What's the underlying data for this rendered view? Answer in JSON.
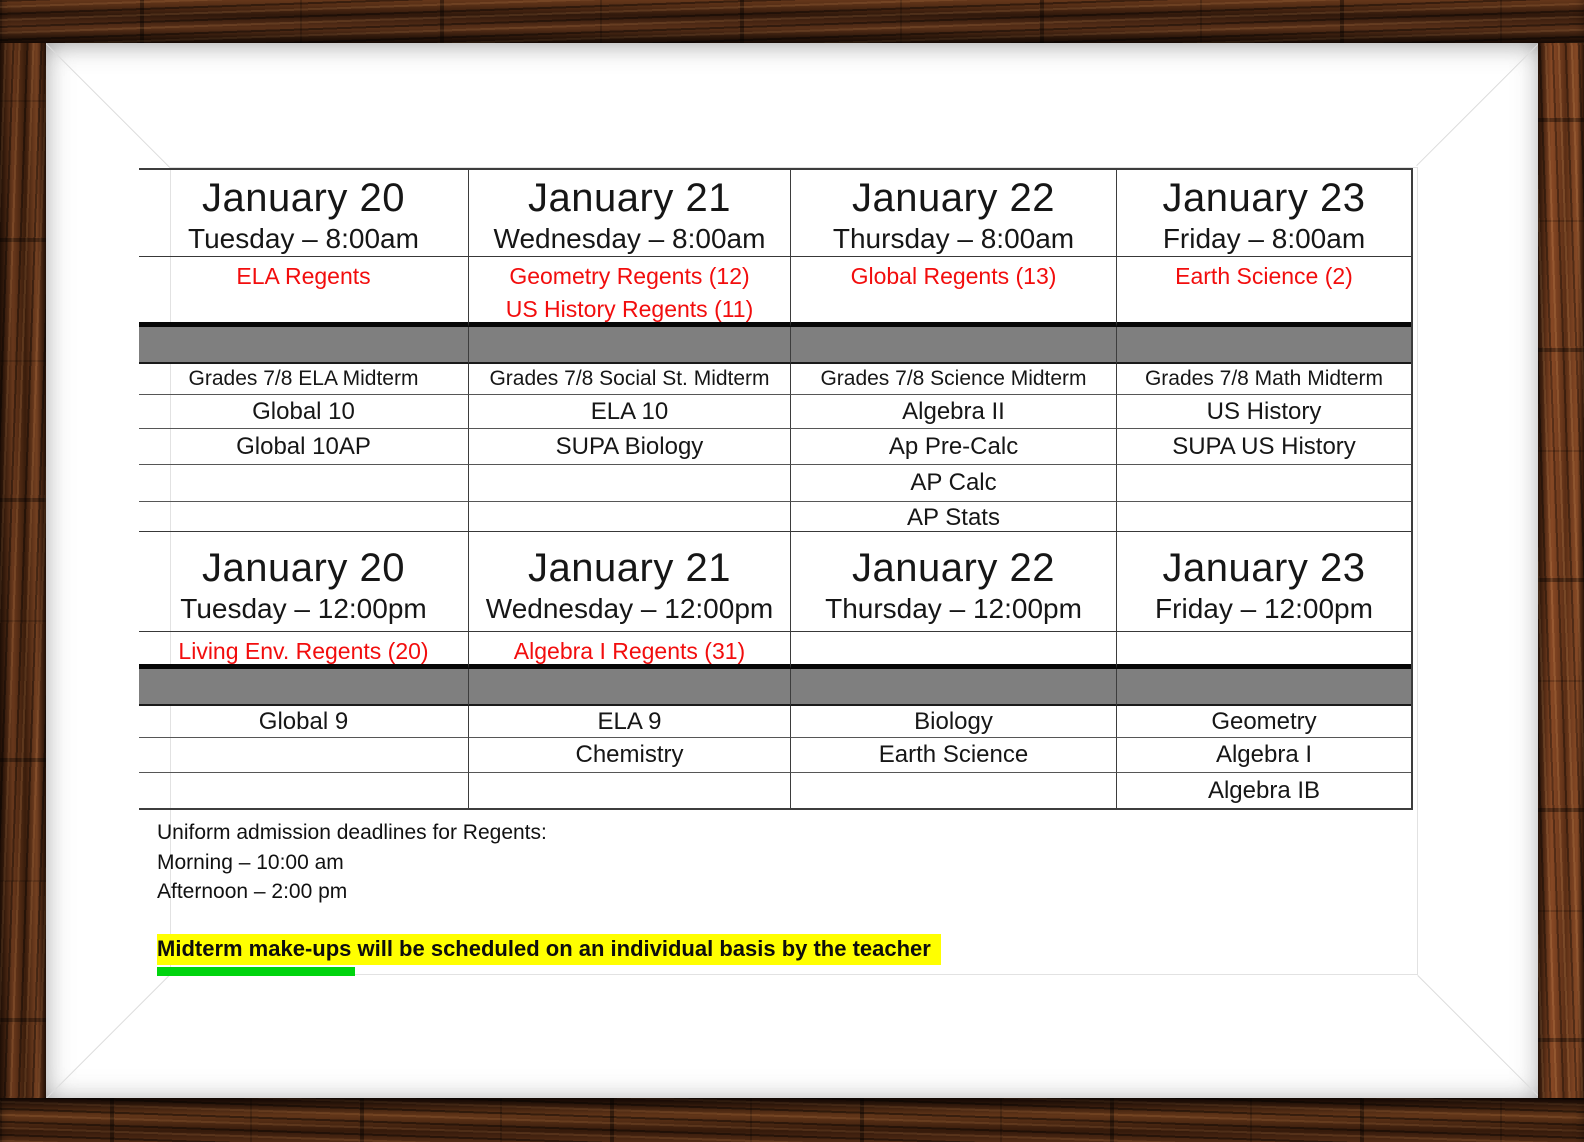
{
  "document": {
    "colors": {
      "regents_red": "#f20d0d",
      "band_gray": "#7f7f7f",
      "highlight_yellow": "#ffff00",
      "underline_green": "#00d40e"
    },
    "blocks": [
      {
        "session": "morning",
        "columns": [
          {
            "date": "January 20",
            "day_time": "Tuesday – 8:00am",
            "regents": [
              "ELA Regents"
            ],
            "rows": [
              "Grades 7/8 ELA Midterm",
              "Global 10",
              "Global 10AP",
              "",
              ""
            ]
          },
          {
            "date": "January 21",
            "day_time": "Wednesday – 8:00am",
            "regents": [
              "Geometry Regents (12)",
              "US History Regents (11)"
            ],
            "rows": [
              "Grades 7/8 Social St. Midterm",
              "ELA 10",
              "SUPA Biology",
              "",
              ""
            ]
          },
          {
            "date": "January 22",
            "day_time": "Thursday – 8:00am",
            "regents": [
              "Global Regents (13)"
            ],
            "rows": [
              "Grades 7/8 Science Midterm",
              "Algebra II",
              "Ap Pre-Calc",
              "AP Calc",
              "AP Stats"
            ]
          },
          {
            "date": "January 23",
            "day_time": "Friday – 8:00am",
            "regents": [
              "Earth Science (2)"
            ],
            "rows": [
              "Grades 7/8 Math Midterm",
              "US History",
              "SUPA US History",
              "",
              ""
            ]
          }
        ]
      },
      {
        "session": "afternoon",
        "columns": [
          {
            "date": "January 20",
            "day_time": "Tuesday – 12:00pm",
            "regents": [
              "Living Env. Regents (20)"
            ],
            "rows": [
              "Global 9",
              "",
              ""
            ]
          },
          {
            "date": "January 21",
            "day_time": "Wednesday – 12:00pm",
            "regents": [
              "Algebra I Regents (31)"
            ],
            "rows": [
              "ELA 9",
              "Chemistry",
              ""
            ]
          },
          {
            "date": "January 22",
            "day_time": "Thursday – 12:00pm",
            "regents": [],
            "rows": [
              "Biology",
              "Earth Science",
              ""
            ]
          },
          {
            "date": "January 23",
            "day_time": "Friday – 12:00pm",
            "regents": [],
            "rows": [
              "Geometry",
              "Algebra I",
              "Algebra IB"
            ]
          }
        ]
      }
    ],
    "notes": {
      "deadlines_title": "Uniform admission deadlines for Regents:",
      "morning_deadline": "Morning – 10:00 am",
      "afternoon_deadline": "Afternoon – 2:00 pm",
      "makeup_note": "Midterm make-ups will be scheduled on an individual basis by the teacher"
    }
  }
}
